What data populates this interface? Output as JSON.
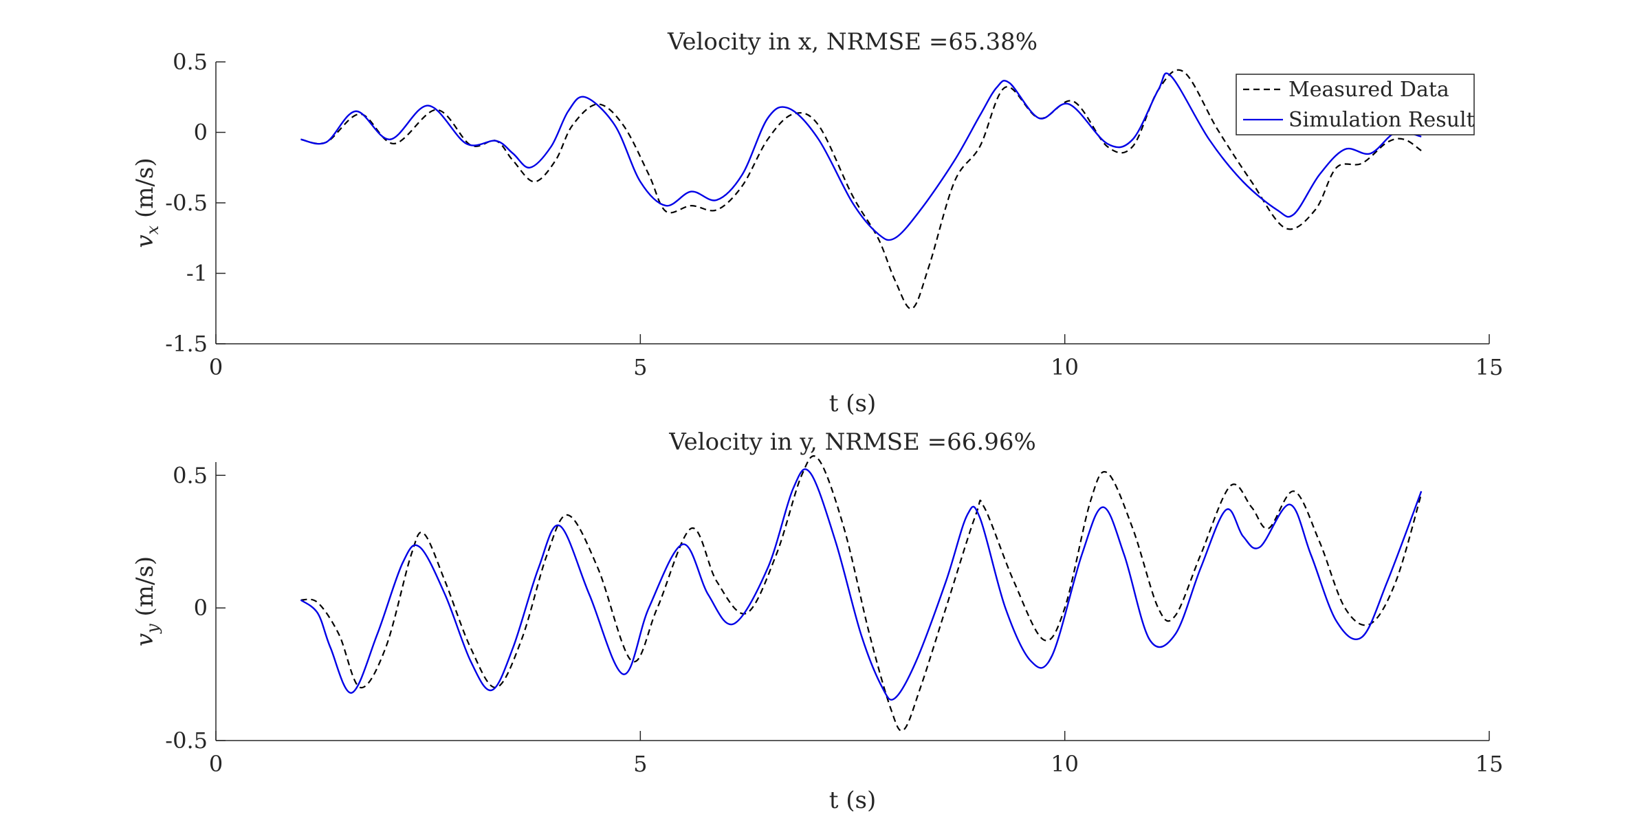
{
  "chart_data": [
    {
      "type": "line",
      "title": "Velocity in x, NRMSE =65.38%",
      "xlabel": "t (s)",
      "ylabel": {
        "var": "v",
        "sub": "x",
        "unit": " (m/s)"
      },
      "xlim": [
        0,
        15
      ],
      "ylim": [
        -1.5,
        0.5
      ],
      "xticks": [
        0,
        5,
        10,
        15
      ],
      "yticks": [
        -1.5,
        -1,
        -0.5,
        0,
        0.5
      ],
      "xtick_labels": [
        "0",
        "5",
        "10",
        "15"
      ],
      "ytick_labels": [
        "-1.5",
        "-1",
        "-0.5",
        "0",
        "0.5"
      ],
      "grid": false,
      "legend": "top-right",
      "series": [
        {
          "name": "Measured Data",
          "style": "dashed",
          "color": "#000000",
          "x": [
            1.0,
            1.3,
            1.7,
            2.1,
            2.6,
            3.0,
            3.3,
            3.5,
            3.75,
            4.0,
            4.2,
            4.5,
            4.8,
            5.1,
            5.3,
            5.6,
            5.9,
            6.2,
            6.5,
            6.8,
            7.1,
            7.5,
            7.8,
            8.0,
            8.2,
            8.4,
            8.7,
            9.0,
            9.3,
            9.7,
            10.1,
            10.5,
            10.8,
            11.1,
            11.4,
            11.8,
            12.2,
            12.6,
            12.95,
            13.2,
            13.5,
            13.8,
            14.0,
            14.2
          ],
          "y": [
            -0.05,
            -0.07,
            0.13,
            -0.08,
            0.16,
            -0.09,
            -0.06,
            -0.2,
            -0.35,
            -0.2,
            0.05,
            0.2,
            0.05,
            -0.3,
            -0.56,
            -0.52,
            -0.55,
            -0.38,
            -0.05,
            0.13,
            0.05,
            -0.45,
            -0.75,
            -1.05,
            -1.25,
            -0.95,
            -0.35,
            -0.1,
            0.32,
            0.1,
            0.22,
            -0.1,
            -0.1,
            0.3,
            0.43,
            0.02,
            -0.35,
            -0.68,
            -0.55,
            -0.25,
            -0.22,
            -0.07,
            -0.05,
            -0.13
          ]
        },
        {
          "name": "Simulation Result",
          "style": "solid",
          "color": "#0000e6",
          "x": [
            1.0,
            1.3,
            1.65,
            2.05,
            2.5,
            2.95,
            3.3,
            3.5,
            3.7,
            3.95,
            4.15,
            4.35,
            4.7,
            5.0,
            5.3,
            5.6,
            5.9,
            6.2,
            6.5,
            6.75,
            7.1,
            7.5,
            7.8,
            8.0,
            8.3,
            8.7,
            9.0,
            9.2,
            9.35,
            9.7,
            10.05,
            10.5,
            10.8,
            11.1,
            11.25,
            11.7,
            12.1,
            12.5,
            12.7,
            13.0,
            13.3,
            13.6,
            13.9,
            14.2
          ],
          "y": [
            -0.05,
            -0.07,
            0.15,
            -0.05,
            0.19,
            -0.08,
            -0.06,
            -0.15,
            -0.25,
            -0.1,
            0.15,
            0.25,
            0.05,
            -0.35,
            -0.52,
            -0.42,
            -0.48,
            -0.3,
            0.1,
            0.17,
            -0.05,
            -0.5,
            -0.72,
            -0.75,
            -0.55,
            -0.2,
            0.12,
            0.32,
            0.35,
            0.1,
            0.2,
            -0.08,
            -0.05,
            0.3,
            0.4,
            -0.05,
            -0.35,
            -0.55,
            -0.58,
            -0.3,
            -0.12,
            -0.15,
            0.0,
            -0.03
          ]
        }
      ]
    },
    {
      "type": "line",
      "title": "Velocity in y, NRMSE =66.96%",
      "xlabel": "t (s)",
      "ylabel": {
        "var": "v",
        "sub": "y",
        "unit": " (m/s)"
      },
      "xlim": [
        0,
        15
      ],
      "ylim": [
        -0.5,
        0.55
      ],
      "xticks": [
        0,
        5,
        10,
        15
      ],
      "yticks": [
        -0.5,
        0,
        0.5
      ],
      "xtick_labels": [
        "0",
        "5",
        "10",
        "15"
      ],
      "ytick_labels": [
        "-0.5",
        "0",
        "0.5"
      ],
      "grid": false,
      "legend": "none",
      "series": [
        {
          "name": "Measured Data",
          "style": "dashed",
          "color": "#000000",
          "x": [
            1.0,
            1.2,
            1.45,
            1.7,
            2.0,
            2.3,
            2.45,
            2.7,
            3.0,
            3.3,
            3.6,
            3.9,
            4.15,
            4.5,
            4.9,
            5.2,
            5.6,
            5.9,
            6.25,
            6.6,
            6.9,
            7.1,
            7.4,
            7.7,
            7.95,
            8.1,
            8.3,
            8.6,
            8.95,
            9.05,
            9.4,
            9.75,
            10.0,
            10.3,
            10.5,
            10.8,
            11.1,
            11.3,
            11.6,
            11.95,
            12.2,
            12.4,
            12.7,
            13.0,
            13.3,
            13.6,
            13.9,
            14.2
          ],
          "y": [
            0.03,
            0.02,
            -0.1,
            -0.3,
            -0.15,
            0.2,
            0.28,
            0.1,
            -0.15,
            -0.3,
            -0.12,
            0.2,
            0.35,
            0.15,
            -0.2,
            0.0,
            0.3,
            0.1,
            -0.02,
            0.2,
            0.5,
            0.56,
            0.3,
            -0.1,
            -0.38,
            -0.46,
            -0.3,
            0.0,
            0.35,
            0.38,
            0.1,
            -0.12,
            0.0,
            0.4,
            0.51,
            0.3,
            0.0,
            -0.03,
            0.2,
            0.46,
            0.38,
            0.3,
            0.44,
            0.25,
            0.0,
            -0.06,
            0.1,
            0.43
          ]
        },
        {
          "name": "Simulation Result",
          "style": "solid",
          "color": "#0000e6",
          "x": [
            1.0,
            1.2,
            1.35,
            1.6,
            1.9,
            2.2,
            2.4,
            2.7,
            3.0,
            3.25,
            3.5,
            3.8,
            4.05,
            4.4,
            4.8,
            5.1,
            5.5,
            5.8,
            6.1,
            6.5,
            6.8,
            7.0,
            7.3,
            7.6,
            7.85,
            8.0,
            8.25,
            8.6,
            8.85,
            9.0,
            9.3,
            9.6,
            9.85,
            10.2,
            10.45,
            10.7,
            11.0,
            11.3,
            11.6,
            11.9,
            12.1,
            12.3,
            12.65,
            12.9,
            13.2,
            13.5,
            13.8,
            14.2
          ],
          "y": [
            0.03,
            -0.02,
            -0.15,
            -0.32,
            -0.1,
            0.17,
            0.23,
            0.05,
            -0.2,
            -0.31,
            -0.15,
            0.15,
            0.31,
            0.05,
            -0.25,
            0.0,
            0.24,
            0.05,
            -0.06,
            0.15,
            0.45,
            0.51,
            0.25,
            -0.1,
            -0.3,
            -0.34,
            -0.2,
            0.1,
            0.35,
            0.34,
            0.0,
            -0.2,
            -0.18,
            0.2,
            0.38,
            0.2,
            -0.12,
            -0.1,
            0.15,
            0.37,
            0.27,
            0.23,
            0.39,
            0.2,
            -0.05,
            -0.11,
            0.1,
            0.44
          ]
        }
      ]
    }
  ]
}
